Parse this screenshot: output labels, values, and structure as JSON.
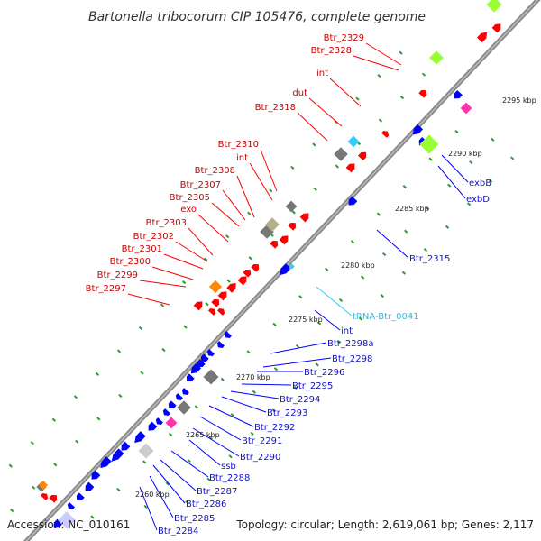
{
  "title": "Bartonella tribocorum CIP 105476, complete genome",
  "accession": "Accession: NC_010161",
  "topology": "Topology: circular; Length: 2,619,061 bp; Genes: 2,117",
  "colors": {
    "forward": "#ff0000",
    "reverse": "#0000ff",
    "trna": "#33ccff",
    "backbone": "#888888",
    "tick_dot": "#339933",
    "rrna": "#99ff33",
    "pseudo": "#ff33aa",
    "orange": "#ff8800",
    "gray": "#777777",
    "khaki": "#b5b08a"
  },
  "kbp_ticks": [
    "2260 kbp",
    "2265 kbp",
    "2270 kbp",
    "2275 kbp",
    "2280 kbp",
    "2285 kbp",
    "2290 kbp",
    "2295 kbp"
  ],
  "labels_left": [
    "Btr_2329",
    "Btr_2328",
    "int",
    "dut",
    "Btr_2318",
    "Btr_2310",
    "int",
    "Btr_2308",
    "Btr_2307",
    "Btr_2305",
    "exo",
    "Btr_2303",
    "Btr_2302",
    "Btr_2301",
    "Btr_2300",
    "Btr_2299",
    "Btr_2297"
  ],
  "labels_right": [
    "exbB",
    "exbD",
    "Btr_2315",
    "tRNA-Btr_0041",
    "int",
    "Btr_2298a",
    "Btr_2298",
    "Btr_2296",
    "Btr_2295",
    "Btr_2294",
    "Btr_2293",
    "Btr_2292",
    "Btr_2291",
    "Btr_2290",
    "ssb",
    "Btr_2288",
    "Btr_2287",
    "Btr_2286",
    "Btr_2285",
    "Btr_2284"
  ]
}
